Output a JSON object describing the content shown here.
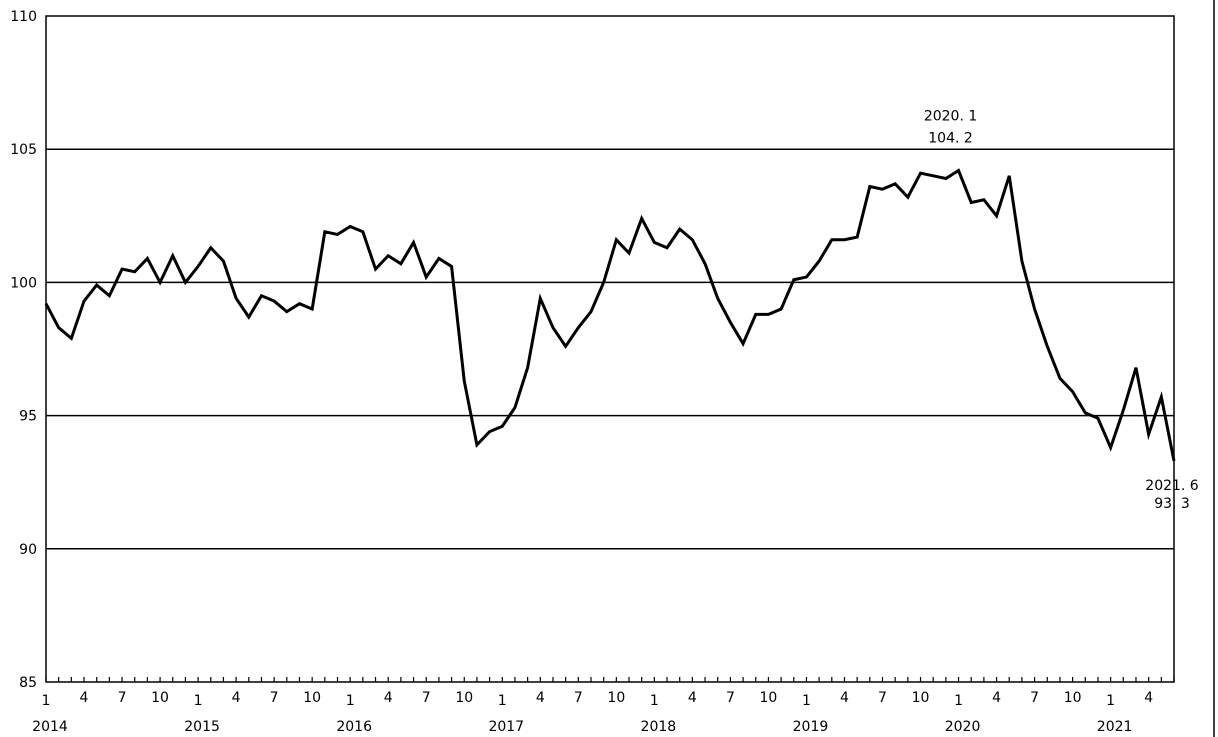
{
  "chart_data": {
    "type": "line",
    "title": "",
    "xlabel": "",
    "ylabel": "",
    "ylim": [
      85,
      110
    ],
    "y_ticks": [
      85,
      90,
      95,
      100,
      105,
      110
    ],
    "grid": "horizontal",
    "line_color": "#000000",
    "x_start": "2014-01",
    "x_end": "2021-06",
    "x_tick_month_labels": [
      "1",
      "4",
      "7",
      "10"
    ],
    "year_labels": [
      "2014",
      "2015",
      "2016",
      "2017",
      "2018",
      "2019",
      "2020",
      "2021"
    ],
    "series": [
      {
        "values": [
          99.2,
          98.3,
          97.9,
          99.3,
          99.9,
          99.5,
          100.5,
          100.4,
          100.9,
          100.0,
          101.0,
          100.0,
          100.6,
          101.3,
          100.8,
          99.4,
          98.7,
          99.5,
          99.3,
          98.9,
          99.2,
          99.0,
          101.9,
          101.8,
          102.1,
          101.9,
          100.5,
          101.0,
          100.7,
          101.5,
          100.2,
          100.9,
          100.6,
          96.3,
          93.9,
          94.4,
          94.6,
          95.3,
          96.8,
          99.4,
          98.3,
          97.6,
          98.3,
          98.9,
          100.0,
          101.6,
          101.1,
          102.4,
          101.5,
          101.3,
          102.0,
          101.6,
          100.7,
          99.4,
          98.5,
          97.7,
          98.8,
          98.8,
          99.0,
          100.1,
          100.2,
          100.8,
          101.6,
          101.6,
          101.7,
          103.6,
          103.5,
          103.7,
          103.2,
          104.1,
          104.0,
          103.9,
          104.2,
          103.0,
          103.1,
          102.5,
          104.0,
          100.8,
          99.0,
          97.6,
          96.4,
          95.9,
          95.1,
          94.9,
          93.8,
          95.2,
          96.8,
          94.3,
          95.7,
          93.3
        ]
      }
    ],
    "annotations": [
      {
        "line1": "2020. 1",
        "line2": "104. 2",
        "month_index": 72
      },
      {
        "line1": "2021. 6",
        "line2": "93. 3",
        "month_index": 89
      }
    ]
  }
}
